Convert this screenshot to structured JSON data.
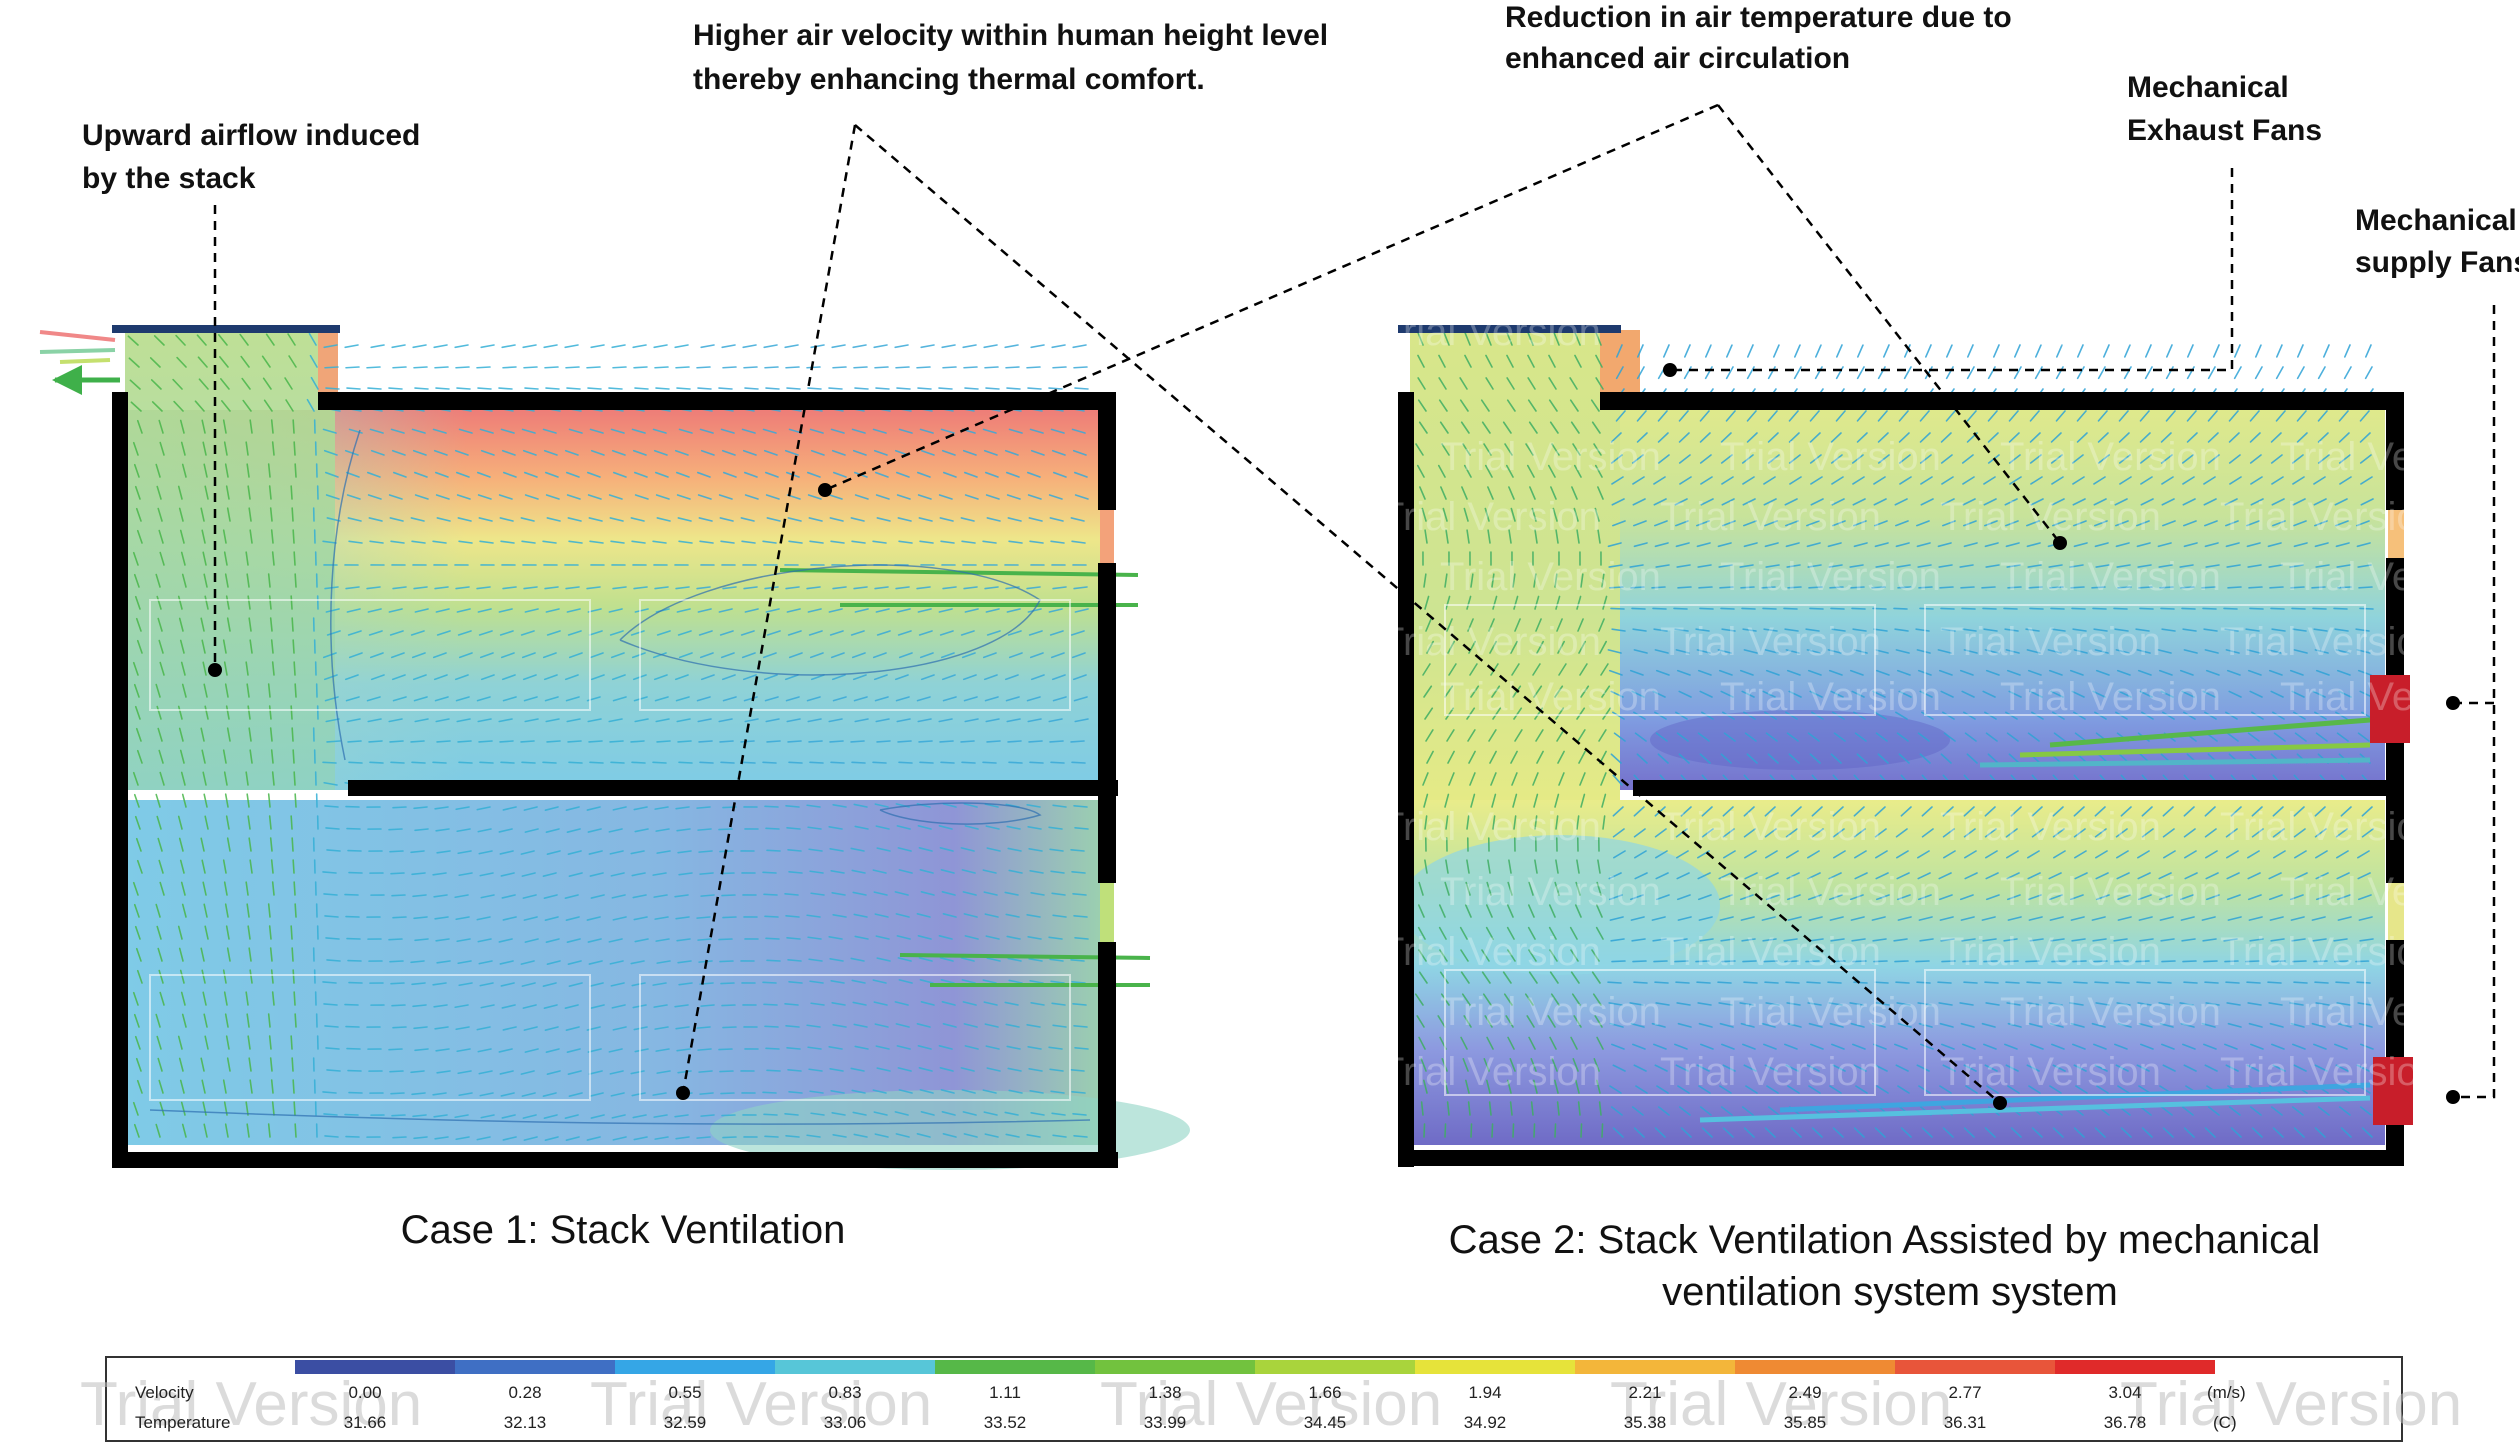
{
  "annotations": {
    "upward_airflow": [
      "Upward airflow induced",
      "by the stack"
    ],
    "higher_velocity": [
      "Higher air velocity within human height level",
      "thereby enhancing thermal comfort."
    ],
    "reduction_temp": [
      "Reduction in air temperature due to",
      "enhanced air circulation"
    ],
    "exhaust_fans": [
      "Mechanical",
      "Exhaust Fans"
    ],
    "supply_fans": [
      "Mechanical",
      "supply Fans"
    ]
  },
  "captions": {
    "case1": "Case 1: Stack Ventilation",
    "case2": [
      "Case 2: Stack Ventilation Assisted by mechanical",
      "ventilation system system"
    ]
  },
  "watermark": "Trial Version",
  "legend": {
    "velocity_label": "Velocity",
    "temperature_label": "Temperature",
    "velocity_unit": "(m/s)",
    "temperature_unit": "(C)",
    "velocity_values": [
      "0.00",
      "0.28",
      "0.55",
      "0.83",
      "1.11",
      "1.38",
      "1.66",
      "1.94",
      "2.21",
      "2.49",
      "2.77",
      "3.04"
    ],
    "temperature_values": [
      "31.66",
      "32.13",
      "32.59",
      "33.06",
      "33.52",
      "33.99",
      "34.45",
      "34.92",
      "35.38",
      "35.85",
      "36.31",
      "36.78"
    ],
    "colors": [
      "#3b4ea3",
      "#3f6fc4",
      "#35a6e6",
      "#57c6d8",
      "#56b848",
      "#72c23e",
      "#a9d43c",
      "#e6e33a",
      "#f3b63a",
      "#ef8a33",
      "#e8553a",
      "#e02a2a"
    ]
  }
}
